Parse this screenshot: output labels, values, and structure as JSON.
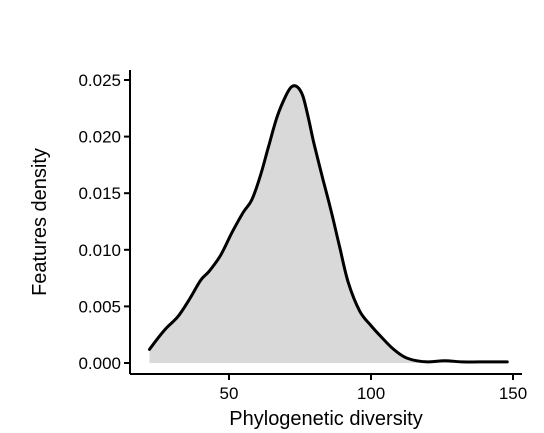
{
  "chart_data": {
    "type": "area",
    "xlabel": "Phylogenetic diversity",
    "ylabel": "Features density",
    "xlim": [
      15,
      150
    ],
    "ylim": [
      0,
      0.025
    ],
    "x_ticks": [
      50,
      100,
      150
    ],
    "y_ticks": [
      0.0,
      0.005,
      0.01,
      0.015,
      0.02,
      0.025
    ],
    "x_tick_labels": [
      "50",
      "100",
      "150"
    ],
    "y_tick_labels": [
      "0.000",
      "0.005",
      "0.010",
      "0.015",
      "0.020",
      "0.025"
    ],
    "grid": false,
    "legend": "none",
    "fill_color": "#d9d9d9",
    "line_color": "#000000",
    "series": [
      {
        "x": [
          22,
          25,
          28,
          32,
          36,
          40,
          43,
          47,
          51,
          55,
          58,
          61,
          64,
          67,
          70,
          72,
          74,
          76,
          78,
          80,
          83,
          86,
          89,
          92,
          96,
          100,
          104,
          108,
          112,
          116,
          120,
          126,
          132,
          138,
          144,
          148
        ],
        "y": [
          0.0012,
          0.0022,
          0.0031,
          0.0041,
          0.0056,
          0.0073,
          0.0081,
          0.0095,
          0.0115,
          0.0133,
          0.0144,
          0.0165,
          0.0192,
          0.0218,
          0.0236,
          0.0244,
          0.0244,
          0.0236,
          0.0216,
          0.0193,
          0.0163,
          0.0134,
          0.0102,
          0.0071,
          0.0046,
          0.0033,
          0.0022,
          0.0012,
          0.0005,
          0.0002,
          0.0001,
          0.0002,
          0.0001,
          0.0001,
          0.0001,
          0.0001
        ]
      }
    ]
  }
}
